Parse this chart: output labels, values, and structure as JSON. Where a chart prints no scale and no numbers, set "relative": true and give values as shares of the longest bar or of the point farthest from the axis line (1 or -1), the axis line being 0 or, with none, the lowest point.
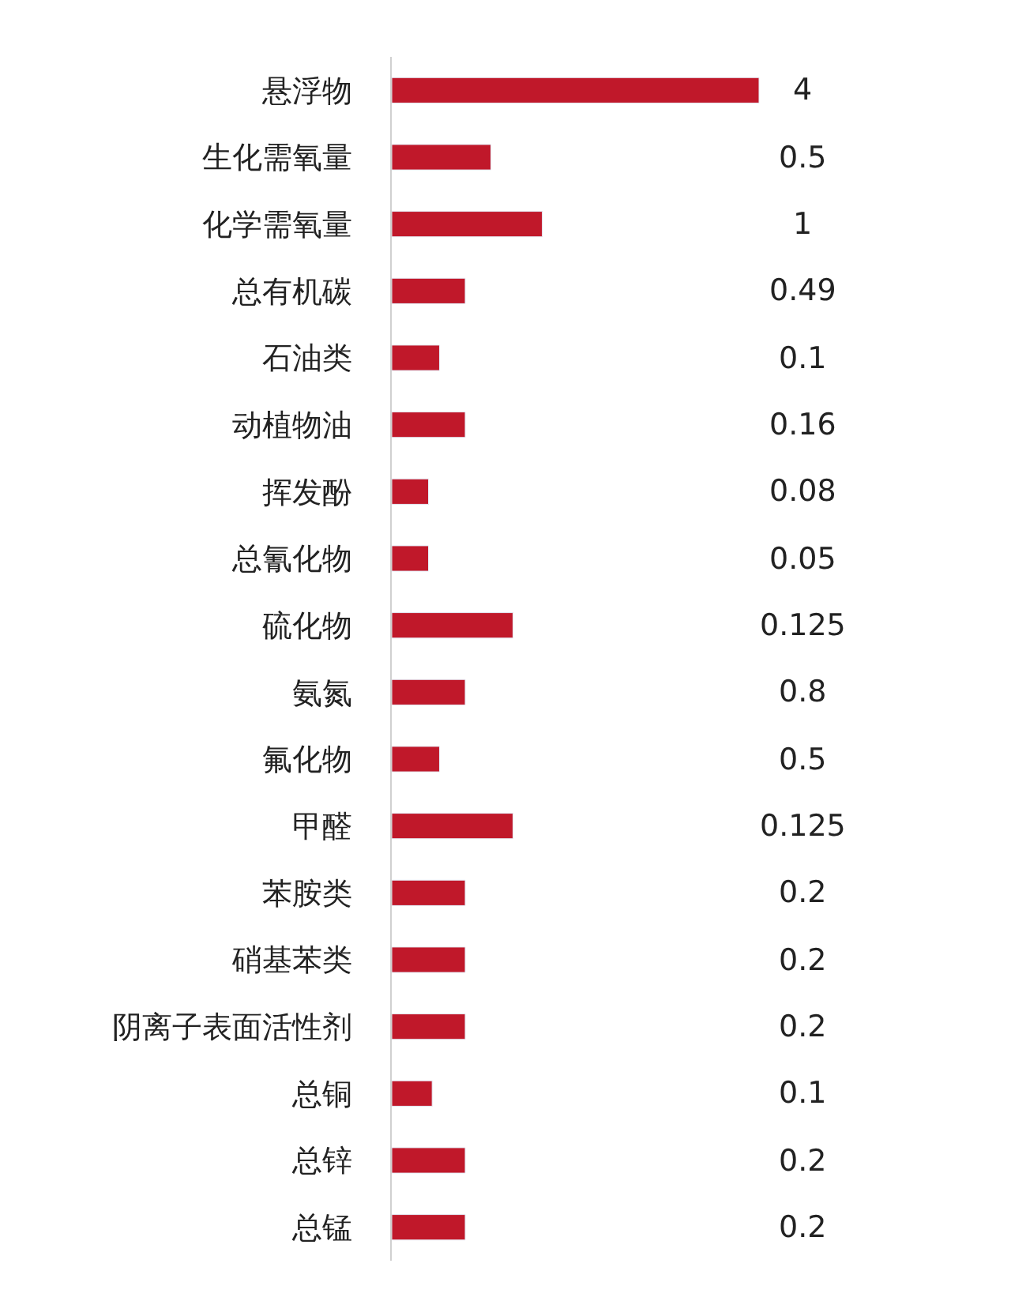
{
  "chart_data": {
    "type": "bar",
    "orientation": "horizontal",
    "relative": true,
    "color": "#c0182a",
    "categories": [
      "悬浮物",
      "生化需氧量",
      "化学需氧量",
      "总有机碳",
      "石油类",
      "动植物油",
      "挥发酚",
      "总氰化物",
      "硫化物",
      "氨氮",
      "氟化物",
      "甲醛",
      "苯胺类",
      "硝基苯类",
      "阴离子表面活性剂",
      "总铜",
      "总锌",
      "总锰"
    ],
    "values": [
      1,
      0.27,
      0.41,
      0.2,
      0.13,
      0.2,
      0.1,
      0.1,
      0.33,
      0.2,
      0.13,
      0.33,
      0.2,
      0.2,
      0.2,
      0.11,
      0.2,
      0.2
    ],
    "annotations": [
      "4",
      "0.5",
      "1",
      "0.49",
      "0.1",
      "0.16",
      "0.08",
      "0.05",
      "0.125",
      "0.8",
      "0.5",
      "0.125",
      "0.2",
      "0.2",
      "0.2",
      "0.1",
      "0.2",
      "0.2"
    ],
    "legend": false
  }
}
